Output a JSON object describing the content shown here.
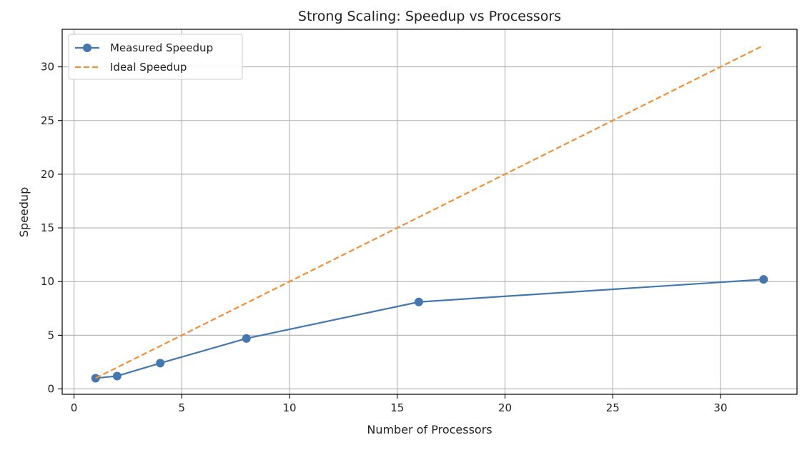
{
  "chart_data": {
    "type": "line",
    "title": "Strong Scaling: Speedup vs Processors",
    "xlabel": "Number of Processors",
    "ylabel": "Speedup",
    "xlim": [
      -0.55,
      33.55
    ],
    "ylim": [
      -0.5,
      33.5
    ],
    "xticks": [
      0,
      5,
      10,
      15,
      20,
      25,
      30
    ],
    "yticks": [
      0,
      5,
      10,
      15,
      20,
      25,
      30
    ],
    "grid": true,
    "legend_position": "top-left",
    "series": [
      {
        "name": "Measured Speedup",
        "style": "solid-line-with-markers",
        "color": "#4477b0",
        "x": [
          1,
          2,
          4,
          8,
          16,
          32
        ],
        "y": [
          1.0,
          1.2,
          2.4,
          4.7,
          8.1,
          10.2
        ]
      },
      {
        "name": "Ideal Speedup",
        "style": "dashed-line",
        "color": "#f28e33",
        "x": [
          1,
          32
        ],
        "y": [
          1,
          32
        ]
      }
    ]
  }
}
